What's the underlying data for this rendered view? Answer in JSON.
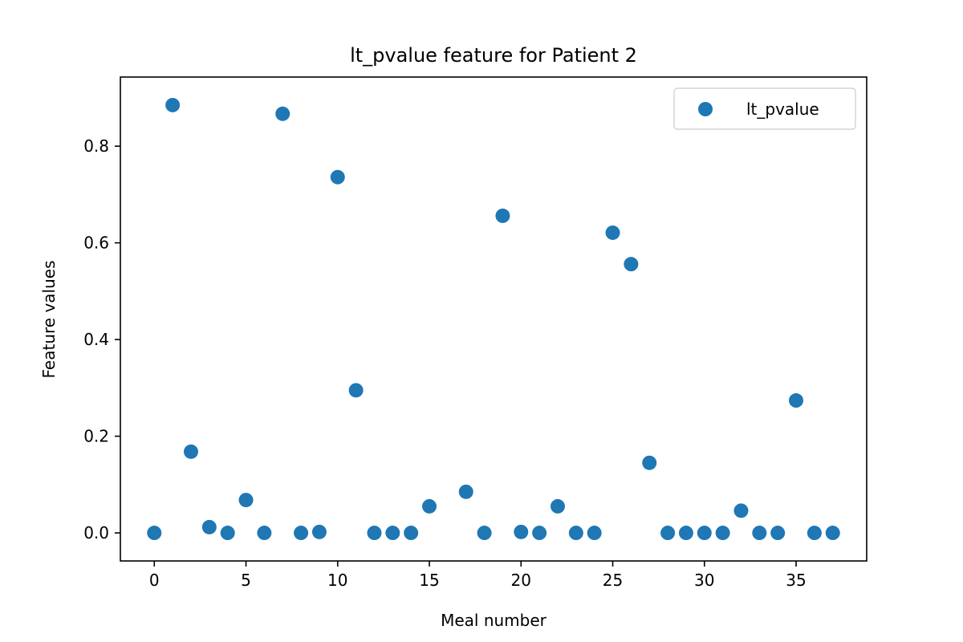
{
  "chart_data": {
    "type": "scatter",
    "title": "lt_pvalue feature for Patient 2",
    "xlabel": "Meal number",
    "ylabel": "Feature values",
    "xlim": [
      -1.85,
      38.85
    ],
    "ylim": [
      -0.058,
      0.943
    ],
    "xticks": [
      0,
      5,
      10,
      15,
      20,
      25,
      30,
      35
    ],
    "yticks": [
      0.0,
      0.2,
      0.4,
      0.6,
      0.8
    ],
    "xtick_labels": [
      "0",
      "5",
      "10",
      "15",
      "20",
      "25",
      "30",
      "35"
    ],
    "ytick_labels": [
      "0.0",
      "0.2",
      "0.4",
      "0.6",
      "0.8"
    ],
    "grid": false,
    "legend_position": "top-right",
    "series": [
      {
        "name": "lt_pvalue",
        "color": "#1f77b4",
        "x": [
          0,
          1,
          2,
          3,
          4,
          5,
          6,
          7,
          8,
          9,
          10,
          11,
          12,
          13,
          14,
          15,
          17,
          18,
          19,
          20,
          21,
          22,
          23,
          24,
          25,
          26,
          27,
          28,
          29,
          30,
          31,
          32,
          33,
          34,
          35,
          36,
          37
        ],
        "y": [
          0.0,
          0.885,
          0.168,
          0.012,
          0.0,
          0.068,
          0.0,
          0.867,
          0.0,
          0.002,
          0.736,
          0.295,
          0.0,
          0.0,
          0.0,
          0.055,
          0.085,
          0.0,
          0.656,
          0.002,
          0.0,
          0.055,
          0.0,
          0.0,
          0.621,
          0.556,
          0.145,
          0.0,
          0.0,
          0.0,
          0.0,
          0.046,
          0.0,
          0.0,
          0.274,
          0.0,
          0.0
        ]
      }
    ]
  }
}
